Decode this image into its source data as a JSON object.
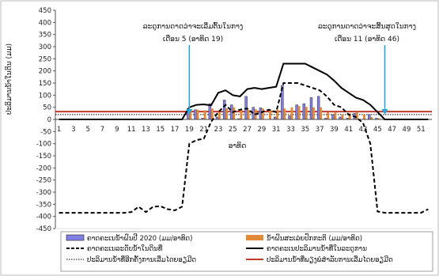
{
  "chart_data": {
    "type": "bar",
    "ylabel": "ປະລິມານນ້ຳໃນດິນ (ມມ)",
    "xlabel": "ອາທິດ",
    "ylim": [
      -450,
      450
    ],
    "yticks": [
      450,
      400,
      350,
      300,
      250,
      200,
      150,
      100,
      50,
      0,
      -50,
      -100,
      -150,
      -200,
      -250,
      -300,
      -350,
      -400,
      -450
    ],
    "x": [
      1,
      2,
      3,
      4,
      5,
      6,
      7,
      8,
      9,
      10,
      11,
      12,
      13,
      14,
      15,
      16,
      17,
      18,
      19,
      20,
      21,
      22,
      23,
      24,
      25,
      26,
      27,
      28,
      29,
      30,
      31,
      32,
      33,
      34,
      35,
      36,
      37,
      38,
      39,
      40,
      41,
      42,
      43,
      44,
      45,
      46,
      47,
      48,
      49,
      50,
      51,
      52
    ],
    "xtick_labels": [
      "1",
      "3",
      "5",
      "7",
      "9",
      "11",
      "13",
      "15",
      "17",
      "19",
      "21",
      "23",
      "25",
      "27",
      "29",
      "31",
      "33",
      "35",
      "37",
      "39",
      "41",
      "43",
      "45",
      "47",
      "49",
      "51"
    ],
    "grid": false,
    "legend_position": "bottom",
    "annotations": [
      {
        "line1": "ລະດູການດາດວ່າຈະເລີ່ມຕົ້ນໃນກາງ",
        "line2": "ເດືອນ 5 (ອາທິດ 19)",
        "week": 19
      },
      {
        "line1": "ລະດູການດາດວ່າຈະສິ້ນສຸດໃນກາງ",
        "line2": "ເດືອນ 11 (ອາທິດ 46)",
        "week": 46
      }
    ],
    "series": [
      {
        "name": "ຄາດຄະເນນ້ຳຝົນປີ 2020 (ມມ/ອາທິດ)",
        "kind": "bar",
        "color": "#7f7fe6",
        "values": [
          0,
          0,
          0,
          0,
          0,
          0,
          0,
          0,
          0,
          0,
          0,
          0,
          0,
          0,
          0,
          0,
          0,
          0,
          45,
          40,
          5,
          65,
          10,
          80,
          60,
          3,
          95,
          50,
          48,
          0,
          10,
          140,
          15,
          60,
          65,
          90,
          95,
          5,
          20,
          10,
          5,
          25,
          0,
          20,
          5,
          0,
          0,
          0,
          0,
          0,
          0,
          0
        ]
      },
      {
        "name": "ນ້ຳຝົນສະເລ່ຍປົກກະຕິ (ມມ/ອາທິດ)",
        "kind": "bar",
        "color": "#e08a3a",
        "values": [
          0,
          0,
          0,
          0,
          0,
          0,
          0,
          0,
          0,
          0,
          0,
          0,
          0,
          0,
          0,
          0,
          0,
          0,
          40,
          40,
          38,
          45,
          30,
          45,
          50,
          40,
          40,
          42,
          45,
          40,
          40,
          45,
          50,
          55,
          52,
          50,
          50,
          30,
          30,
          20,
          25,
          30,
          20,
          10,
          5,
          0,
          0,
          0,
          0,
          0,
          0,
          0
        ]
      },
      {
        "name": "ຄາດຄະເນລະດັບນ້ຳໃນດິນທີ່",
        "kind": "line",
        "style": "dashed",
        "color": "#000000",
        "values": [
          -385,
          -385,
          -385,
          -385,
          -385,
          -385,
          -385,
          -385,
          -385,
          -385,
          -382,
          -360,
          -382,
          -360,
          -358,
          -370,
          -375,
          -360,
          -100,
          -85,
          -80,
          -10,
          30,
          60,
          30,
          40,
          45,
          20,
          30,
          40,
          30,
          150,
          150,
          150,
          140,
          130,
          120,
          95,
          60,
          50,
          20,
          10,
          -15,
          -100,
          -380,
          -385,
          -385,
          -385,
          -385,
          -385,
          -385,
          -370
        ]
      },
      {
        "name": "ຄາດຄະເນປະລິມານນ້ຳທີ່ໃນລະດູການ",
        "kind": "line",
        "style": "solid",
        "color": "#000000",
        "values": [
          0,
          0,
          0,
          0,
          0,
          0,
          0,
          0,
          0,
          0,
          0,
          0,
          0,
          0,
          0,
          0,
          0,
          0,
          50,
          60,
          62,
          58,
          110,
          120,
          100,
          95,
          125,
          130,
          125,
          130,
          135,
          230,
          230,
          230,
          230,
          215,
          200,
          185,
          160,
          130,
          110,
          90,
          80,
          60,
          30,
          0,
          0,
          0,
          0,
          0,
          0,
          0
        ]
      },
      {
        "name": "ປະລິມານນ້ຳທີ່ອີກຄັ້ງການເລີ່ມໄດຍອຽມີດ",
        "kind": "hline",
        "style": "dotted",
        "color": "#000000",
        "value": 20
      },
      {
        "name": "ປະລິມານນ້ຳທີ່ພຽງພໍສຳລັບການເລີ່ມໄດຍອຽມີດ",
        "kind": "hline",
        "style": "solid",
        "color": "#c0392b",
        "value": 32
      }
    ],
    "colors": {
      "arrow": "#2aa6d6",
      "hline_dark_red": "#8b1a1a"
    }
  }
}
